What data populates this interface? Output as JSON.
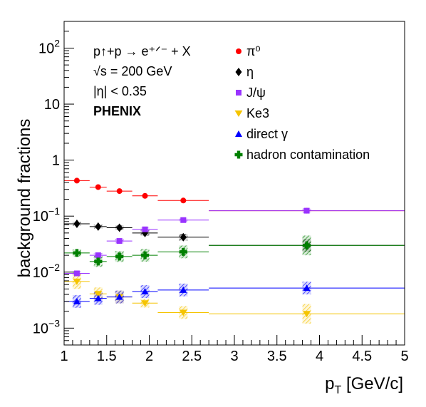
{
  "chart_data": {
    "type": "scatter",
    "xlabel": "p_T [GeV/c]",
    "ylabel": "background fractions",
    "xlim": [
      1,
      5
    ],
    "ylim": [
      0.0005,
      300
    ],
    "y_scale": "log",
    "grid": false,
    "legend_placement": "top-right",
    "x_ticks": [
      "1",
      "1.5",
      "2",
      "2.5",
      "3",
      "3.5",
      "4",
      "4.5",
      "5"
    ],
    "y_ticks": [
      {
        "value": 0.001,
        "base": "10",
        "exp": "−3"
      },
      {
        "value": 0.01,
        "base": "10",
        "exp": "−2"
      },
      {
        "value": 0.1,
        "base": "10",
        "exp": "−1"
      },
      {
        "value": 1,
        "base": "1",
        "exp": ""
      },
      {
        "value": 10,
        "base": "10",
        "exp": ""
      },
      {
        "value": 100,
        "base": "10",
        "exp": "2"
      }
    ],
    "info": {
      "reaction": "p↑+p → e⁺ᐟ⁻ + X",
      "energy": "√s = 200 GeV",
      "eta": "|η| < 0.35",
      "experiment": "PHENIX"
    },
    "series": [
      {
        "name": "π⁰",
        "color": "#ff0000",
        "marker": "circle",
        "x": [
          1.15,
          1.4,
          1.65,
          1.95,
          2.4,
          3.85
        ],
        "y": [
          0.43,
          0.33,
          0.28,
          0.23,
          0.19,
          0.125
        ],
        "bins": [
          [
            1.0,
            1.3
          ],
          [
            1.3,
            1.5
          ],
          [
            1.5,
            1.8
          ],
          [
            1.8,
            2.1
          ],
          [
            2.1,
            2.7
          ],
          [
            2.7,
            5.0
          ]
        ],
        "sys": [
          0.0,
          0.0,
          0.0,
          0.0,
          0.0,
          0.0
        ]
      },
      {
        "name": "η",
        "color": "#000000",
        "marker": "diamond",
        "x": [
          1.15,
          1.4,
          1.65,
          1.95,
          2.4,
          3.85
        ],
        "y": [
          0.073,
          0.065,
          0.062,
          0.05,
          0.042,
          0.03
        ],
        "bins": [
          [
            1.0,
            1.3
          ],
          [
            1.3,
            1.5
          ],
          [
            1.5,
            1.8
          ],
          [
            1.8,
            2.1
          ],
          [
            2.1,
            2.7
          ],
          [
            2.7,
            5.0
          ]
        ],
        "sys": [
          0.08,
          0.08,
          0.1,
          0.12,
          0.15,
          0.3
        ]
      },
      {
        "name": "J/ψ",
        "color": "#9933ff",
        "marker": "square",
        "x": [
          1.15,
          1.4,
          1.65,
          1.95,
          2.4,
          3.85
        ],
        "y": [
          0.0095,
          0.02,
          0.036,
          0.058,
          0.085,
          0.125
        ],
        "bins": [
          [
            1.0,
            1.3
          ],
          [
            1.3,
            1.5
          ],
          [
            1.5,
            1.8
          ],
          [
            1.8,
            2.1
          ],
          [
            2.1,
            2.7
          ],
          [
            2.7,
            5.0
          ]
        ],
        "sys": [
          0.1,
          0.1,
          0.1,
          0.1,
          0.1,
          0.1
        ]
      },
      {
        "name": "Ke3",
        "color": "#f5c400",
        "marker": "triangle-down",
        "x": [
          1.15,
          1.4,
          1.65,
          1.95,
          2.4,
          3.85
        ],
        "y": [
          0.0068,
          0.0041,
          0.0036,
          0.0028,
          0.0019,
          0.0018
        ],
        "bins": [
          [
            1.0,
            1.3
          ],
          [
            1.3,
            1.5
          ],
          [
            1.5,
            1.8
          ],
          [
            1.8,
            2.1
          ],
          [
            2.1,
            2.7
          ],
          [
            2.7,
            5.0
          ]
        ],
        "sys": [
          0.35,
          0.3,
          0.3,
          0.2,
          0.3,
          0.5
        ]
      },
      {
        "name": "direct γ",
        "color": "#0000ff",
        "marker": "triangle-up",
        "x": [
          1.15,
          1.4,
          1.65,
          1.95,
          2.4,
          3.85
        ],
        "y": [
          0.003,
          0.0034,
          0.0036,
          0.0045,
          0.0048,
          0.0052
        ],
        "bins": [
          [
            1.0,
            1.3
          ],
          [
            1.3,
            1.5
          ],
          [
            1.5,
            1.8
          ],
          [
            1.8,
            2.1
          ],
          [
            2.1,
            2.7
          ],
          [
            2.7,
            5.0
          ]
        ],
        "sys": [
          0.3,
          0.3,
          0.3,
          0.3,
          0.3,
          0.3
        ]
      },
      {
        "name": "hadron contamination",
        "color": "#008000",
        "marker": "cross",
        "x": [
          1.15,
          1.4,
          1.65,
          1.95,
          2.4,
          3.85
        ],
        "y": [
          0.022,
          0.0155,
          0.019,
          0.02,
          0.023,
          0.03
        ],
        "bins": [
          [
            1.0,
            1.3
          ],
          [
            1.3,
            1.5
          ],
          [
            1.5,
            1.8
          ],
          [
            1.8,
            2.1
          ],
          [
            2.1,
            2.7
          ],
          [
            2.7,
            5.0
          ]
        ],
        "sys": [
          0.15,
          0.25,
          0.25,
          0.3,
          0.3,
          0.5
        ]
      }
    ]
  }
}
